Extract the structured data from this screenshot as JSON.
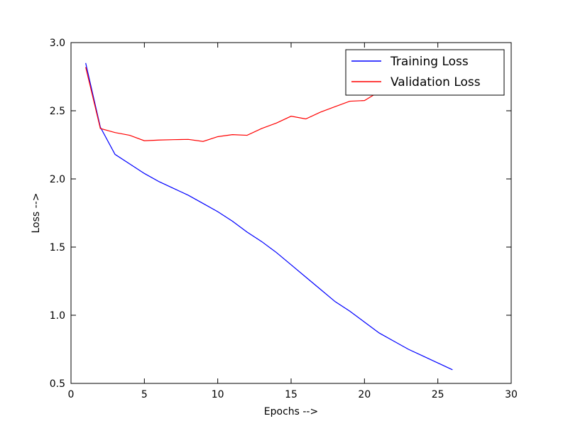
{
  "chart_data": {
    "type": "line",
    "title": "",
    "xlabel": "Epochs -->",
    "ylabel": "Loss -->",
    "xlim": [
      0,
      30
    ],
    "ylim": [
      0.5,
      3.0
    ],
    "x_ticks": [
      0,
      5,
      10,
      15,
      20,
      25,
      30
    ],
    "y_ticks": [
      0.5,
      1.0,
      1.5,
      2.0,
      2.5,
      3.0
    ],
    "x_tick_labels": [
      "0",
      "5",
      "10",
      "15",
      "20",
      "25",
      "30"
    ],
    "y_tick_labels": [
      "0.5",
      "1.0",
      "1.5",
      "2.0",
      "2.5",
      "3.0"
    ],
    "grid": false,
    "legend_position": "top-right",
    "x": [
      1,
      2,
      3,
      4,
      5,
      6,
      7,
      8,
      9,
      10,
      11,
      12,
      13,
      14,
      15,
      16,
      17,
      18,
      19,
      20,
      21,
      22,
      23,
      24,
      25,
      26
    ],
    "series": [
      {
        "name": "Training Loss",
        "color": "#0000ff",
        "values": [
          2.85,
          2.38,
          2.18,
          2.11,
          2.04,
          1.98,
          1.93,
          1.88,
          1.82,
          1.76,
          1.69,
          1.61,
          1.54,
          1.46,
          1.37,
          1.28,
          1.19,
          1.1,
          1.03,
          0.95,
          0.87,
          0.81,
          0.75,
          0.7,
          0.65,
          0.6
        ]
      },
      {
        "name": "Validation Loss",
        "color": "#ff0000",
        "values": [
          2.82,
          2.37,
          2.34,
          2.32,
          2.28,
          2.285,
          2.288,
          2.29,
          2.275,
          2.31,
          2.325,
          2.32,
          2.37,
          2.41,
          2.46,
          2.44,
          2.49,
          2.53,
          2.57,
          2.575,
          2.64,
          2.7,
          2.73,
          2.75,
          2.77,
          2.79
        ]
      }
    ]
  }
}
